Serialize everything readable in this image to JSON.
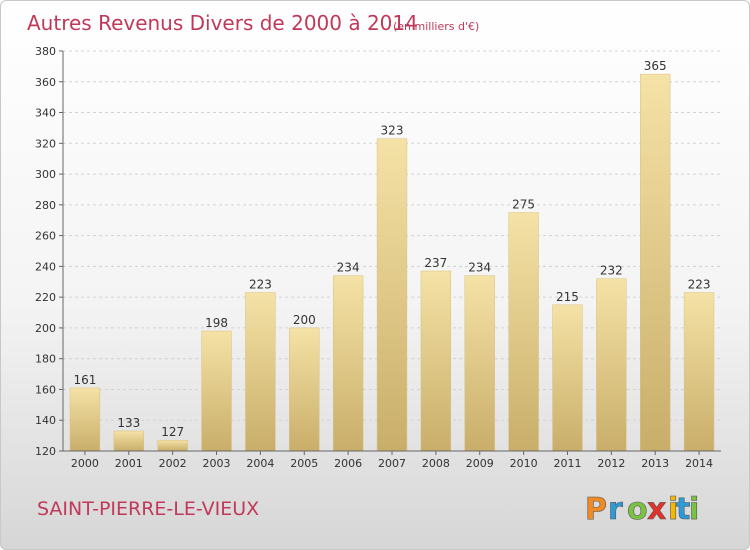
{
  "chart_data": {
    "type": "bar",
    "title": "Autres Revenus Divers de 2000 à 2014",
    "subtitle": "(en milliers d'€)",
    "categories": [
      "2000",
      "2001",
      "2002",
      "2003",
      "2004",
      "2005",
      "2006",
      "2007",
      "2008",
      "2009",
      "2010",
      "2011",
      "2012",
      "2013",
      "2014"
    ],
    "values": [
      161,
      133,
      127,
      198,
      223,
      200,
      234,
      323,
      237,
      234,
      275,
      215,
      232,
      365,
      223
    ],
    "ylim": [
      120,
      380
    ],
    "yticks": [
      120,
      140,
      160,
      180,
      200,
      220,
      240,
      260,
      280,
      300,
      320,
      340,
      360,
      380
    ],
    "grid": true,
    "bar_color": "#e8cf8a",
    "bar_color_light": "#f5e2a6",
    "bar_color_dark": "#c9ae6a"
  },
  "footer": {
    "commune": "SAINT-PIERRE-LE-VIEUX",
    "logo_letters": [
      "P",
      "r",
      "o",
      "x",
      "i",
      "t",
      "i"
    ],
    "logo_colors": [
      "#f08a24",
      "#2e9bd6",
      "#7cc242",
      "#e5312b",
      "#f5b800",
      "#2e9bd6",
      "#7cc242"
    ]
  }
}
